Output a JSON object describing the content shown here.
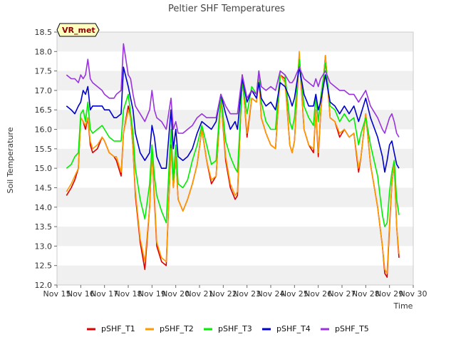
{
  "chart_data": {
    "type": "line",
    "title": "Peltier SHF Temperatures",
    "xlabel": "Time",
    "ylabel": "Soil Temperature",
    "badge": "VR_met",
    "x_tick_labels": [
      "Nov 15",
      "Nov 16",
      "Nov 17",
      "Nov 18",
      "Nov 19",
      "Nov 20",
      "Nov 21",
      "Nov 22",
      "Nov 23",
      "Nov 24",
      "Nov 25",
      "Nov 26",
      "Nov 27",
      "Nov 28",
      "Nov 29",
      "Nov 30"
    ],
    "xlim": [
      0,
      15
    ],
    "ylim": [
      12.0,
      18.5
    ],
    "y_ticks": [
      12.0,
      12.5,
      13.0,
      13.5,
      14.0,
      14.5,
      15.0,
      15.5,
      16.0,
      16.5,
      17.0,
      17.5,
      18.0,
      18.5
    ],
    "grid": "horizontal bands",
    "legend_position": "bottom",
    "x_unit_note": "x values are days after Nov 15",
    "series": [
      {
        "name": "pSHF_T1",
        "color": "#dd0000",
        "x": [
          0.4,
          0.6,
          0.75,
          0.9,
          1.0,
          1.1,
          1.2,
          1.3,
          1.4,
          1.5,
          1.7,
          1.9,
          2.0,
          2.2,
          2.4,
          2.5,
          2.7,
          2.8,
          3.0,
          3.1,
          3.2,
          3.3,
          3.5,
          3.7,
          3.9,
          4.0,
          4.1,
          4.2,
          4.4,
          4.6,
          4.8,
          4.9,
          5.0,
          5.1,
          5.3,
          5.5,
          5.7,
          5.9,
          6.1,
          6.3,
          6.5,
          6.7,
          6.9,
          7.1,
          7.3,
          7.5,
          7.6,
          7.8,
          8.0,
          8.2,
          8.4,
          8.5,
          8.6,
          8.8,
          9.0,
          9.2,
          9.4,
          9.6,
          9.8,
          9.9,
          10.0,
          10.2,
          10.4,
          10.6,
          10.8,
          10.9,
          11.0,
          11.1,
          11.3,
          11.5,
          11.7,
          11.9,
          12.1,
          12.3,
          12.5,
          12.7,
          12.8,
          13.0,
          13.2,
          13.5,
          13.7,
          13.8,
          13.9,
          14.0,
          14.1,
          14.2,
          14.3,
          14.4
        ],
        "values": [
          14.3,
          14.5,
          14.7,
          15.0,
          16.3,
          16.2,
          16.0,
          16.3,
          15.6,
          15.4,
          15.5,
          15.8,
          15.7,
          15.4,
          15.3,
          15.2,
          14.8,
          15.9,
          16.6,
          16.3,
          15.5,
          14.3,
          13.1,
          12.4,
          14.0,
          15.5,
          14.2,
          13.0,
          12.6,
          12.5,
          15.6,
          14.5,
          15.3,
          14.2,
          13.9,
          14.2,
          14.6,
          15.1,
          16.0,
          15.2,
          14.6,
          14.8,
          16.8,
          15.2,
          14.5,
          14.2,
          14.3,
          17.4,
          15.8,
          16.8,
          16.7,
          17.4,
          16.3,
          15.9,
          15.6,
          15.5,
          17.4,
          17.3,
          15.6,
          15.4,
          15.7,
          17.9,
          16.0,
          15.6,
          15.4,
          16.5,
          15.3,
          16.4,
          17.9,
          16.3,
          16.2,
          15.8,
          16.0,
          15.8,
          15.9,
          14.9,
          15.3,
          16.4,
          15.1,
          14.0,
          13.0,
          12.3,
          12.2,
          13.5,
          14.6,
          15.1,
          13.5,
          12.7
        ]
      },
      {
        "name": "pSHF_T2",
        "color": "#ff9900",
        "x": [
          0.4,
          0.6,
          0.75,
          0.9,
          1.0,
          1.1,
          1.2,
          1.3,
          1.4,
          1.5,
          1.7,
          1.9,
          2.0,
          2.2,
          2.4,
          2.5,
          2.7,
          2.8,
          3.0,
          3.1,
          3.2,
          3.3,
          3.5,
          3.7,
          3.9,
          4.0,
          4.1,
          4.2,
          4.4,
          4.6,
          4.8,
          4.9,
          5.0,
          5.1,
          5.3,
          5.5,
          5.7,
          5.9,
          6.1,
          6.3,
          6.5,
          6.7,
          6.9,
          7.1,
          7.3,
          7.5,
          7.6,
          7.8,
          8.0,
          8.2,
          8.4,
          8.5,
          8.6,
          8.8,
          9.0,
          9.2,
          9.4,
          9.6,
          9.8,
          9.9,
          10.0,
          10.2,
          10.4,
          10.6,
          10.8,
          10.9,
          11.0,
          11.1,
          11.3,
          11.5,
          11.7,
          11.9,
          12.1,
          12.3,
          12.5,
          12.7,
          12.8,
          13.0,
          13.2,
          13.5,
          13.7,
          13.8,
          13.9,
          14.0,
          14.1,
          14.2,
          14.3,
          14.4
        ],
        "values": [
          14.4,
          14.6,
          14.8,
          15.0,
          16.3,
          16.2,
          16.1,
          16.3,
          15.7,
          15.5,
          15.6,
          15.8,
          15.7,
          15.4,
          15.3,
          15.3,
          14.9,
          15.9,
          16.5,
          16.3,
          15.5,
          14.4,
          13.2,
          12.6,
          14.0,
          15.5,
          14.3,
          13.1,
          12.7,
          12.6,
          15.5,
          14.5,
          15.3,
          14.2,
          13.9,
          14.2,
          14.6,
          15.1,
          16.0,
          15.2,
          14.7,
          14.8,
          16.8,
          15.3,
          14.6,
          14.3,
          14.4,
          17.3,
          15.9,
          16.8,
          16.7,
          17.3,
          16.3,
          15.9,
          15.6,
          15.5,
          17.4,
          17.2,
          15.6,
          15.4,
          15.7,
          18.0,
          16.0,
          15.6,
          15.5,
          16.5,
          15.4,
          16.4,
          17.9,
          16.3,
          16.2,
          15.9,
          16.0,
          15.8,
          15.9,
          15.0,
          15.3,
          16.4,
          15.1,
          14.0,
          13.0,
          12.4,
          12.3,
          13.6,
          14.6,
          15.1,
          13.5,
          12.8
        ]
      },
      {
        "name": "pSHF_T3",
        "color": "#00ee00",
        "x": [
          0.4,
          0.6,
          0.75,
          0.9,
          1.0,
          1.1,
          1.2,
          1.3,
          1.4,
          1.5,
          1.7,
          1.9,
          2.0,
          2.2,
          2.4,
          2.5,
          2.7,
          2.8,
          3.0,
          3.1,
          3.2,
          3.3,
          3.5,
          3.7,
          3.9,
          4.0,
          4.1,
          4.2,
          4.4,
          4.6,
          4.8,
          4.9,
          5.0,
          5.1,
          5.3,
          5.5,
          5.7,
          5.9,
          6.1,
          6.3,
          6.5,
          6.7,
          6.9,
          7.1,
          7.3,
          7.5,
          7.6,
          7.8,
          8.0,
          8.2,
          8.4,
          8.5,
          8.6,
          8.8,
          9.0,
          9.2,
          9.4,
          9.6,
          9.8,
          9.9,
          10.0,
          10.2,
          10.4,
          10.6,
          10.8,
          10.9,
          11.0,
          11.1,
          11.3,
          11.5,
          11.7,
          11.9,
          12.1,
          12.3,
          12.5,
          12.7,
          12.8,
          13.0,
          13.2,
          13.5,
          13.7,
          13.8,
          13.9,
          14.0,
          14.1,
          14.2,
          14.3,
          14.4
        ],
        "values": [
          15.0,
          15.1,
          15.3,
          15.4,
          16.4,
          16.5,
          16.2,
          16.7,
          16.0,
          15.9,
          16.0,
          16.1,
          16.0,
          15.8,
          15.7,
          15.7,
          15.7,
          16.5,
          16.9,
          16.4,
          15.9,
          15.0,
          14.2,
          13.7,
          14.6,
          15.6,
          14.8,
          14.3,
          13.9,
          13.6,
          16.0,
          14.7,
          15.6,
          14.6,
          14.5,
          14.7,
          15.2,
          15.6,
          16.1,
          15.6,
          15.1,
          15.2,
          16.9,
          15.7,
          15.3,
          15.0,
          14.9,
          17.2,
          16.4,
          17.1,
          16.9,
          17.5,
          16.7,
          16.2,
          16.0,
          16.0,
          17.5,
          17.4,
          16.2,
          16.0,
          16.3,
          17.8,
          16.6,
          16.3,
          16.1,
          16.9,
          16.2,
          16.8,
          17.7,
          16.6,
          16.5,
          16.2,
          16.4,
          16.2,
          16.3,
          15.6,
          15.9,
          16.3,
          15.6,
          14.8,
          13.8,
          13.5,
          13.6,
          14.4,
          14.9,
          15.2,
          14.2,
          13.8
        ]
      },
      {
        "name": "pSHF_T4",
        "color": "#0000cc",
        "x": [
          0.4,
          0.6,
          0.75,
          0.9,
          1.0,
          1.1,
          1.2,
          1.3,
          1.4,
          1.5,
          1.7,
          1.9,
          2.0,
          2.2,
          2.4,
          2.5,
          2.7,
          2.8,
          3.0,
          3.1,
          3.2,
          3.3,
          3.5,
          3.7,
          3.9,
          4.0,
          4.1,
          4.2,
          4.4,
          4.6,
          4.8,
          4.9,
          5.0,
          5.1,
          5.3,
          5.5,
          5.7,
          5.9,
          6.1,
          6.3,
          6.5,
          6.7,
          6.9,
          7.1,
          7.3,
          7.5,
          7.6,
          7.8,
          8.0,
          8.2,
          8.4,
          8.5,
          8.6,
          8.8,
          9.0,
          9.2,
          9.4,
          9.6,
          9.8,
          9.9,
          10.0,
          10.2,
          10.4,
          10.6,
          10.8,
          10.9,
          11.0,
          11.1,
          11.3,
          11.5,
          11.7,
          11.9,
          12.1,
          12.3,
          12.5,
          12.7,
          12.8,
          13.0,
          13.2,
          13.5,
          13.7,
          13.8,
          13.9,
          14.0,
          14.1,
          14.2,
          14.3,
          14.4
        ],
        "values": [
          16.6,
          16.5,
          16.4,
          16.6,
          16.7,
          17.0,
          16.9,
          17.1,
          16.5,
          16.6,
          16.6,
          16.6,
          16.5,
          16.5,
          16.3,
          16.3,
          16.4,
          17.6,
          17.1,
          16.8,
          16.5,
          15.9,
          15.4,
          15.2,
          15.4,
          16.1,
          15.8,
          15.3,
          15.0,
          15.0,
          16.5,
          15.5,
          16.0,
          15.3,
          15.2,
          15.3,
          15.5,
          15.9,
          16.2,
          16.1,
          16.0,
          16.2,
          16.9,
          16.4,
          16.0,
          16.2,
          16.0,
          17.3,
          16.7,
          17.0,
          16.8,
          17.2,
          16.8,
          16.6,
          16.7,
          16.5,
          17.2,
          17.1,
          16.8,
          16.6,
          16.8,
          17.6,
          16.9,
          16.6,
          16.6,
          16.9,
          16.5,
          16.7,
          17.4,
          16.7,
          16.6,
          16.4,
          16.6,
          16.4,
          16.6,
          16.2,
          16.4,
          16.8,
          16.3,
          15.8,
          15.3,
          14.9,
          15.2,
          15.6,
          15.7,
          15.4,
          15.1,
          15.0
        ]
      },
      {
        "name": "pSHF_T5",
        "color": "#9933dd",
        "x": [
          0.4,
          0.6,
          0.75,
          0.9,
          1.0,
          1.1,
          1.2,
          1.3,
          1.4,
          1.5,
          1.7,
          1.9,
          2.0,
          2.2,
          2.4,
          2.5,
          2.7,
          2.8,
          3.0,
          3.1,
          3.2,
          3.3,
          3.5,
          3.7,
          3.9,
          4.0,
          4.1,
          4.2,
          4.4,
          4.6,
          4.8,
          4.9,
          5.0,
          5.1,
          5.3,
          5.5,
          5.7,
          5.9,
          6.1,
          6.3,
          6.5,
          6.7,
          6.9,
          7.1,
          7.3,
          7.5,
          7.6,
          7.8,
          8.0,
          8.2,
          8.4,
          8.5,
          8.6,
          8.8,
          9.0,
          9.2,
          9.4,
          9.6,
          9.8,
          9.9,
          10.0,
          10.2,
          10.4,
          10.6,
          10.8,
          10.9,
          11.0,
          11.1,
          11.3,
          11.5,
          11.7,
          11.9,
          12.1,
          12.3,
          12.5,
          12.7,
          12.8,
          13.0,
          13.2,
          13.5,
          13.7,
          13.8,
          13.9,
          14.0,
          14.1,
          14.2,
          14.3,
          14.4
        ],
        "values": [
          17.4,
          17.3,
          17.3,
          17.2,
          17.4,
          17.3,
          17.4,
          17.8,
          17.3,
          17.2,
          17.1,
          17.0,
          16.9,
          16.8,
          16.8,
          16.9,
          17.0,
          18.2,
          17.4,
          17.3,
          16.9,
          16.6,
          16.4,
          16.2,
          16.5,
          17.0,
          16.5,
          16.3,
          16.2,
          16.0,
          16.8,
          16.0,
          16.2,
          15.9,
          15.9,
          16.0,
          16.1,
          16.3,
          16.4,
          16.3,
          16.3,
          16.3,
          16.9,
          16.6,
          16.4,
          16.4,
          16.4,
          17.4,
          16.8,
          17.0,
          16.9,
          17.5,
          17.1,
          17.0,
          17.1,
          17.0,
          17.5,
          17.4,
          17.2,
          17.2,
          17.3,
          17.6,
          17.3,
          17.2,
          17.1,
          17.3,
          17.1,
          17.3,
          17.5,
          17.2,
          17.1,
          17.0,
          17.0,
          16.9,
          16.9,
          16.7,
          16.8,
          17.0,
          16.6,
          16.3,
          16.0,
          15.9,
          16.1,
          16.3,
          16.4,
          16.2,
          15.9,
          15.8
        ]
      }
    ]
  }
}
